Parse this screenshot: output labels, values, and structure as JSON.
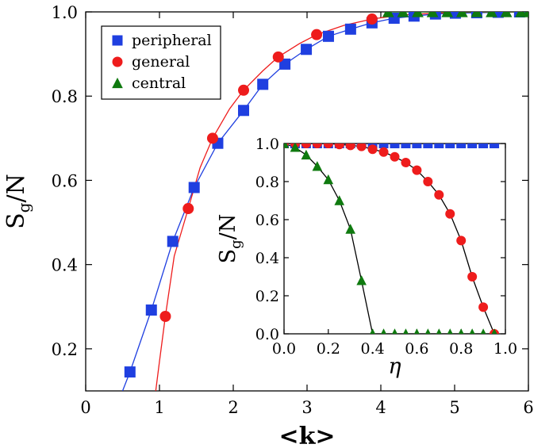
{
  "chart_data": [
    {
      "type": "line",
      "xlabel": "<k>",
      "ylabel": "S_g/N",
      "ylabel_main": "S",
      "ylabel_sub": "g",
      "ylabel_tail": "/N",
      "xlim": [
        0,
        6
      ],
      "ylim": [
        0.1,
        1.0
      ],
      "xticks": [
        0,
        1,
        2,
        3,
        4,
        5,
        6
      ],
      "yticks": [
        0.2,
        0.4,
        0.6,
        0.8,
        1.0
      ],
      "xtick_labels": [
        "0",
        "1",
        "2",
        "3",
        "4",
        "5",
        "6"
      ],
      "ytick_labels": [
        "0.2",
        "0.4",
        "0.6",
        "0.8",
        "1.0"
      ],
      "legend_position": "top-left",
      "series": [
        {
          "name": "peripheral",
          "color": "#1f3fe0",
          "marker": "square",
          "x": [
            0.6,
            0.89,
            1.18,
            1.47,
            1.79,
            2.14,
            2.4,
            2.7,
            2.99,
            3.29,
            3.59,
            3.88,
            4.18,
            4.45,
            4.74,
            5.01,
            5.3,
            5.59,
            5.88
          ],
          "y": [
            0.145,
            0.292,
            0.455,
            0.583,
            0.688,
            0.766,
            0.828,
            0.876,
            0.911,
            0.942,
            0.959,
            0.974,
            0.985,
            0.99,
            0.995,
            0.997,
            0.998,
            0.999,
            1.0
          ],
          "curve_x": [
            0.5,
            0.6,
            0.89,
            1.18,
            1.47,
            1.79,
            2.14,
            2.4,
            2.7,
            2.99,
            3.29,
            3.59,
            3.88,
            4.18,
            4.45,
            4.74,
            5.01,
            5.3,
            5.59,
            5.88,
            6.0
          ],
          "curve_y": [
            0.1,
            0.145,
            0.292,
            0.455,
            0.583,
            0.688,
            0.766,
            0.828,
            0.876,
            0.911,
            0.942,
            0.959,
            0.974,
            0.985,
            0.99,
            0.995,
            0.997,
            0.998,
            0.999,
            1.0,
            1.0
          ]
        },
        {
          "name": "general",
          "color": "#ee1c1c",
          "marker": "circle",
          "x": [
            1.08,
            1.39,
            1.72,
            2.14,
            2.61,
            3.13,
            3.88
          ],
          "y": [
            0.277,
            0.533,
            0.7,
            0.814,
            0.893,
            0.946,
            0.983
          ],
          "curve_x": [
            0.95,
            1.0,
            1.08,
            1.2,
            1.39,
            1.55,
            1.72,
            1.95,
            2.14,
            2.4,
            2.61,
            2.9,
            3.13,
            3.5,
            3.88,
            4.3,
            5.0,
            6.0
          ],
          "curve_y": [
            0.1,
            0.17,
            0.277,
            0.42,
            0.533,
            0.63,
            0.7,
            0.77,
            0.814,
            0.86,
            0.893,
            0.925,
            0.946,
            0.968,
            0.983,
            0.993,
            0.999,
            1.0
          ]
        },
        {
          "name": "central",
          "color": "#0f7a0f",
          "marker": "triangle",
          "x": [
            4.1,
            4.3,
            4.5,
            4.7,
            4.9,
            5.1,
            5.3,
            5.5,
            5.7,
            5.9,
            6.0
          ],
          "y": [
            1.0,
            1.0,
            1.0,
            1.0,
            1.0,
            1.0,
            1.0,
            1.0,
            1.0,
            1.0,
            1.0
          ],
          "curve_x": [
            4.1,
            6.0
          ],
          "curve_y": [
            1.0,
            1.0
          ]
        }
      ]
    },
    {
      "type": "line",
      "xlabel": "η",
      "ylabel": "S_g/N",
      "ylabel_main": "S",
      "ylabel_sub": "g",
      "ylabel_tail": "/N",
      "xlim": [
        0,
        1.0
      ],
      "ylim": [
        0,
        1.0
      ],
      "xticks": [
        0,
        0.2,
        0.4,
        0.6,
        0.8,
        1.0
      ],
      "yticks": [
        0,
        0.2,
        0.4,
        0.6,
        0.8,
        1.0
      ],
      "xtick_labels": [
        "0.0",
        "0.2",
        "0.4",
        "0.6",
        "0.8",
        "1.0"
      ],
      "ytick_labels": [
        "0.0",
        "0.2",
        "0.4",
        "0.6",
        "0.8",
        "1.0"
      ],
      "series": [
        {
          "name": "peripheral",
          "color": "#1f3fe0",
          "marker": "square",
          "x": [
            0.0,
            0.05,
            0.1,
            0.15,
            0.2,
            0.25,
            0.3,
            0.35,
            0.4,
            0.45,
            0.5,
            0.55,
            0.6,
            0.65,
            0.7,
            0.75,
            0.8,
            0.85,
            0.9,
            0.95
          ],
          "y": [
            1,
            1,
            1,
            1,
            1,
            1,
            1,
            1,
            1,
            1,
            1,
            1,
            1,
            1,
            1,
            1,
            1,
            1,
            1,
            1
          ]
        },
        {
          "name": "general",
          "color": "#ee1c1c",
          "marker": "circle",
          "x": [
            0.0,
            0.05,
            0.1,
            0.15,
            0.2,
            0.25,
            0.3,
            0.35,
            0.4,
            0.45,
            0.5,
            0.55,
            0.6,
            0.65,
            0.7,
            0.75,
            0.8,
            0.85,
            0.9,
            0.95
          ],
          "y": [
            1.0,
            1.0,
            1.0,
            1.0,
            1.0,
            0.995,
            0.99,
            0.985,
            0.97,
            0.955,
            0.93,
            0.9,
            0.86,
            0.8,
            0.73,
            0.63,
            0.49,
            0.3,
            0.14,
            0.0
          ]
        },
        {
          "name": "central",
          "color": "#0f7a0f",
          "marker": "triangle",
          "x": [
            0.0,
            0.05,
            0.1,
            0.15,
            0.2,
            0.25,
            0.3,
            0.35,
            0.4,
            0.45,
            0.5,
            0.55,
            0.6,
            0.65,
            0.7,
            0.75,
            0.8,
            0.85,
            0.9,
            0.95
          ],
          "y": [
            1.0,
            0.98,
            0.94,
            0.88,
            0.81,
            0.7,
            0.55,
            0.28,
            0.0,
            0.0,
            0.0,
            0.0,
            0.0,
            0.0,
            0.0,
            0.0,
            0.0,
            0.0,
            0.0,
            0.0
          ]
        }
      ]
    }
  ]
}
